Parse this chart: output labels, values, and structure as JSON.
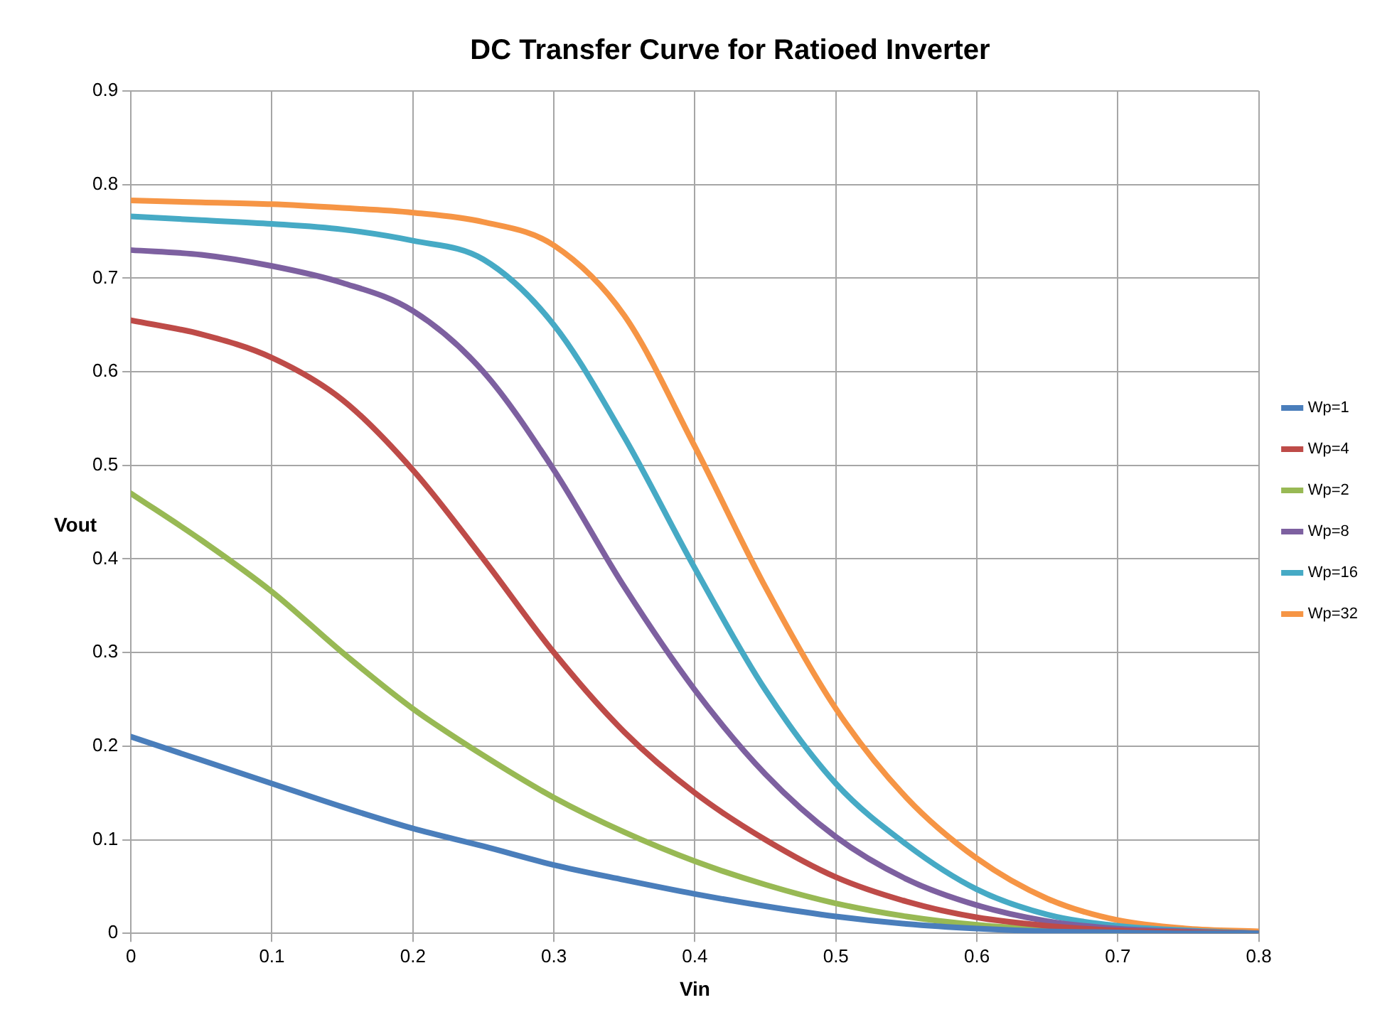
{
  "chart_data": {
    "type": "line",
    "title": "DC Transfer Curve for Ratioed Inverter",
    "xlabel": "Vin",
    "ylabel": "Vout",
    "x": [
      0,
      0.05,
      0.1,
      0.15,
      0.2,
      0.25,
      0.3,
      0.35,
      0.4,
      0.45,
      0.5,
      0.55,
      0.6,
      0.65,
      0.7,
      0.75,
      0.8
    ],
    "series": [
      {
        "name": "Wp=1",
        "color": "#4a7ebb",
        "values": [
          0.21,
          0.185,
          0.16,
          0.135,
          0.112,
          0.093,
          0.073,
          0.057,
          0.042,
          0.029,
          0.018,
          0.01,
          0.005,
          0.002,
          0.001,
          0,
          0
        ]
      },
      {
        "name": "Wp=4",
        "color": "#be4b48",
        "values": [
          0.655,
          0.64,
          0.615,
          0.57,
          0.495,
          0.4,
          0.3,
          0.215,
          0.15,
          0.1,
          0.06,
          0.034,
          0.017,
          0.008,
          0.003,
          0.001,
          0
        ]
      },
      {
        "name": "Wp=2",
        "color": "#98b954",
        "values": [
          0.47,
          0.42,
          0.365,
          0.3,
          0.24,
          0.19,
          0.145,
          0.108,
          0.077,
          0.052,
          0.032,
          0.018,
          0.009,
          0.004,
          0.002,
          0.001,
          0
        ]
      },
      {
        "name": "Wp=8",
        "color": "#7d60a0",
        "values": [
          0.73,
          0.725,
          0.713,
          0.695,
          0.665,
          0.6,
          0.495,
          0.37,
          0.26,
          0.17,
          0.103,
          0.058,
          0.03,
          0.013,
          0.005,
          0.002,
          0
        ]
      },
      {
        "name": "Wp=16",
        "color": "#46aac5",
        "values": [
          0.766,
          0.762,
          0.758,
          0.752,
          0.74,
          0.72,
          0.65,
          0.53,
          0.39,
          0.26,
          0.16,
          0.095,
          0.047,
          0.02,
          0.008,
          0.003,
          0
        ]
      },
      {
        "name": "Wp=32",
        "color": "#f69545",
        "values": [
          0.783,
          0.781,
          0.779,
          0.775,
          0.77,
          0.76,
          0.735,
          0.66,
          0.52,
          0.37,
          0.24,
          0.145,
          0.08,
          0.037,
          0.014,
          0.005,
          0.002
        ]
      }
    ],
    "xlim": [
      0,
      0.8
    ],
    "xticks": [
      0,
      0.1,
      0.2,
      0.3,
      0.4,
      0.5,
      0.6,
      0.7,
      0.8
    ],
    "ylim": [
      0,
      0.9
    ],
    "yticks": [
      0,
      0.1,
      0.2,
      0.3,
      0.4,
      0.5,
      0.6,
      0.7,
      0.8,
      0.9
    ],
    "grid": true,
    "legend": "right",
    "marker": "none",
    "line_style": "solid"
  }
}
